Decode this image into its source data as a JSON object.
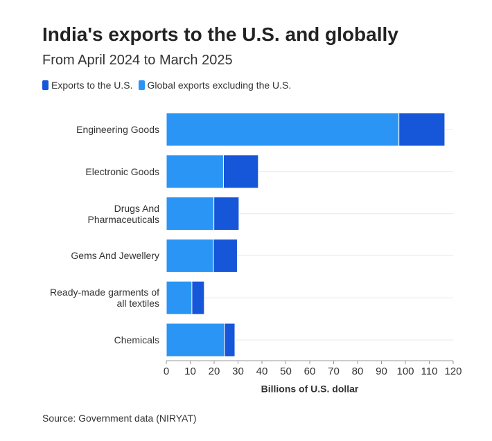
{
  "chart_data": {
    "type": "stacked-barh",
    "title": "India's exports to the U.S. and globally",
    "subtitle": "From April 2024 to March 2025",
    "categories": [
      "Engineering Goods",
      "Electronic Goods",
      "Drugs And Pharmaceuticals",
      "Gems And Jewellery",
      "Ready-made garments of all textiles",
      "Chemicals"
    ],
    "series": [
      {
        "name": "Exports to the U.S.",
        "color": "#1656d8",
        "values": [
          19.2,
          14.6,
          10.5,
          10.0,
          5.2,
          4.4
        ]
      },
      {
        "name": "Global exports excluding the U.S.",
        "color": "#2a95f5",
        "values": [
          97.3,
          23.9,
          19.9,
          19.7,
          10.7,
          24.3
        ]
      }
    ],
    "xlim": [
      0,
      120
    ],
    "xticks": [
      0,
      10,
      20,
      30,
      40,
      50,
      60,
      70,
      80,
      90,
      100,
      110,
      120
    ],
    "xlabel": "Billions of U.S. dollar",
    "source": "Source: Government data (NIRYAT)"
  }
}
